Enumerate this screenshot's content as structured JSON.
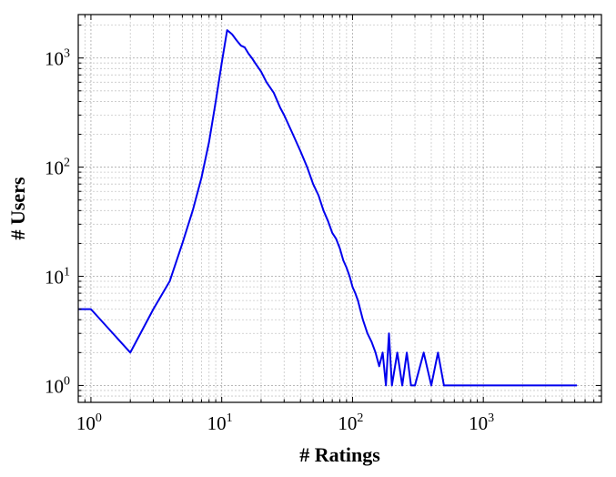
{
  "chart_data": {
    "type": "line",
    "xlabel": "# Ratings",
    "ylabel": "# Users",
    "x_scale": "log",
    "y_scale": "log",
    "xlim": [
      0.8,
      8000
    ],
    "ylim": [
      0.7,
      2500
    ],
    "grid": true,
    "grid_minor": true,
    "color": "#0000ee",
    "x_ticks": [
      {
        "base": "10",
        "exp": "0",
        "value": 1
      },
      {
        "base": "10",
        "exp": "1",
        "value": 10
      },
      {
        "base": "10",
        "exp": "2",
        "value": 100
      },
      {
        "base": "10",
        "exp": "3",
        "value": 1000
      }
    ],
    "y_ticks": [
      {
        "base": "10",
        "exp": "0",
        "value": 1
      },
      {
        "base": "10",
        "exp": "1",
        "value": 10
      },
      {
        "base": "10",
        "exp": "2",
        "value": 100
      },
      {
        "base": "10",
        "exp": "3",
        "value": 1000
      }
    ],
    "series": [
      {
        "x": [
          0.8,
          1,
          2,
          3,
          4,
          5,
          6,
          7,
          8,
          9,
          10,
          11,
          12,
          13,
          14,
          15,
          16,
          17,
          18,
          20,
          22,
          25,
          28,
          30,
          35,
          40,
          45,
          50,
          55,
          60,
          65,
          70,
          75,
          80,
          85,
          90,
          95,
          100,
          105,
          110,
          120,
          130,
          140,
          150,
          160,
          170,
          180,
          190,
          200,
          220,
          240,
          260,
          280,
          300,
          350,
          400,
          450,
          500,
          600,
          700,
          800,
          900,
          1000,
          1200,
          1400,
          1700,
          2000,
          2400,
          3000,
          3300,
          4000,
          5200
        ],
        "y": [
          5,
          5,
          2,
          5,
          9,
          20,
          40,
          80,
          170,
          400,
          900,
          1800,
          1650,
          1450,
          1300,
          1250,
          1100,
          1000,
          900,
          750,
          600,
          480,
          350,
          300,
          200,
          140,
          100,
          70,
          55,
          40,
          32,
          25,
          22,
          18,
          14,
          12,
          10,
          8,
          7,
          6,
          4,
          3,
          2.5,
          2,
          1.5,
          2,
          1,
          3,
          1,
          2,
          1,
          2,
          1,
          1,
          2,
          1,
          2,
          1,
          1,
          1,
          1,
          1,
          1,
          1,
          1,
          1,
          1,
          1,
          1,
          1,
          1,
          1
        ]
      }
    ]
  }
}
